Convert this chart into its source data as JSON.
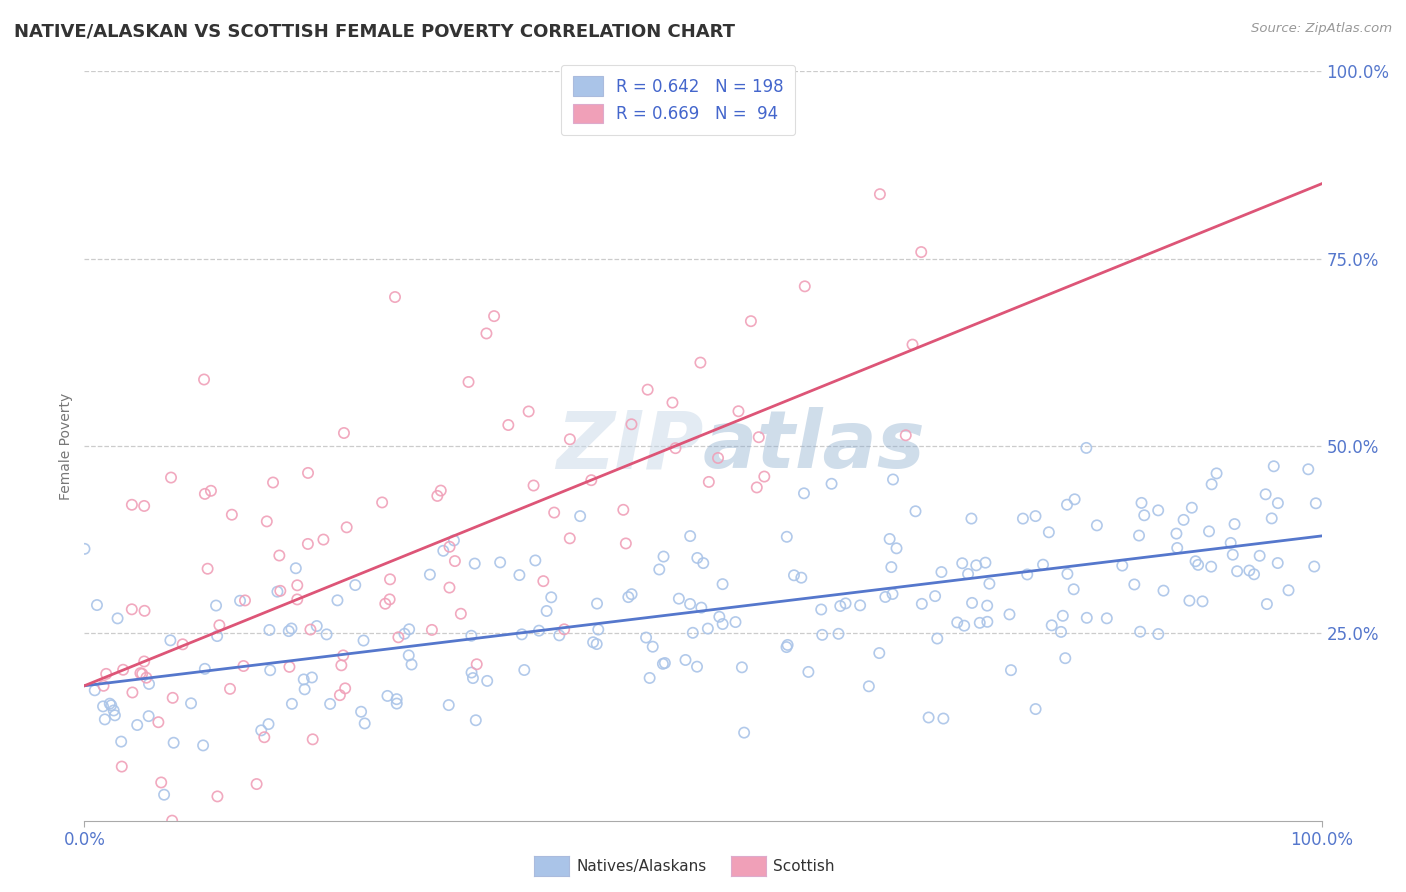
{
  "title": "NATIVE/ALASKAN VS SCOTTISH FEMALE POVERTY CORRELATION CHART",
  "source": "Source: ZipAtlas.com",
  "ylabel": "Female Poverty",
  "blue_R": 0.642,
  "blue_N": 198,
  "pink_R": 0.669,
  "pink_N": 94,
  "blue_color": "#aac4e8",
  "pink_color": "#f0a0b8",
  "blue_line_color": "#5577cc",
  "pink_line_color": "#dd5577",
  "watermark_color": "#d8e4f0",
  "background_color": "#ffffff",
  "grid_color": "#cccccc",
  "legend_label_blue": "R = 0.642   N = 198",
  "legend_label_pink": "R = 0.669   N =  94",
  "bottom_label_blue": "Natives/Alaskans",
  "bottom_label_pink": "Scottish",
  "seed": 12345,
  "blue_x_min": 0,
  "blue_x_max": 100,
  "blue_y_intercept": 18,
  "blue_y_end": 38,
  "pink_x_min": 0,
  "pink_x_max": 100,
  "pink_y_intercept": 18,
  "pink_y_end": 85,
  "xlim": [
    0,
    100
  ],
  "ylim": [
    0,
    100
  ],
  "ytick_vals": [
    25,
    50,
    75,
    100
  ],
  "ytick_labels": [
    "25.0%",
    "50.0%",
    "75.0%",
    "100.0%"
  ]
}
